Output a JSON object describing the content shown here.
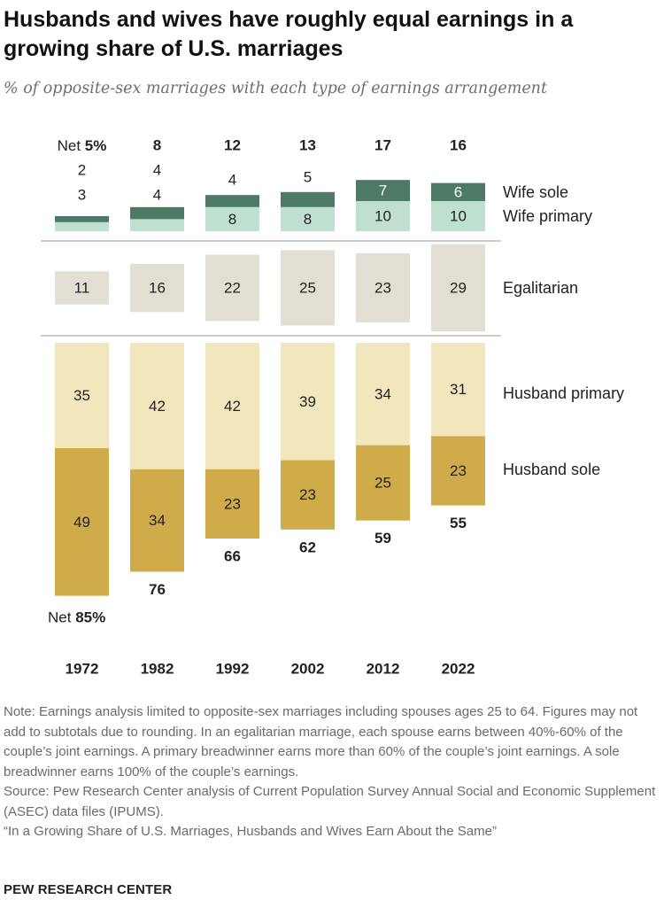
{
  "title": "Husbands and wives have roughly equal earnings in a growing share of U.S. marriages",
  "subtitle": "% of opposite-sex marriages with each type of earnings arrangement",
  "chart_data": {
    "type": "bar",
    "stacked": "diverging",
    "categories": [
      "1972",
      "1982",
      "1992",
      "2002",
      "2012",
      "2022"
    ],
    "series": [
      {
        "name": "Wife sole",
        "group": "wife",
        "color": "#4d7a66",
        "labels": [
          "2",
          "4",
          "4",
          "5",
          "7",
          "6"
        ],
        "values": [
          2,
          4,
          4,
          5,
          7,
          6
        ]
      },
      {
        "name": "Wife primary",
        "group": "wife",
        "color": "#bfe0d0",
        "labels": [
          "3",
          "4",
          "8",
          "8",
          "10",
          "10"
        ],
        "values": [
          3,
          4,
          8,
          8,
          10,
          10
        ]
      },
      {
        "name": "Egalitarian",
        "group": "egalitarian",
        "color": "#e2dfd2",
        "labels": [
          "11",
          "16",
          "22",
          "25",
          "23",
          "29"
        ],
        "values": [
          11,
          16,
          22,
          25,
          23,
          29
        ]
      },
      {
        "name": "Husband primary",
        "group": "husband",
        "color": "#f1e6bc",
        "labels": [
          "35",
          "42",
          "42",
          "39",
          "34",
          "31"
        ],
        "values": [
          35,
          42,
          42,
          39,
          34,
          31
        ]
      },
      {
        "name": "Husband sole",
        "group": "husband",
        "color": "#cfab4a",
        "labels": [
          "49",
          "34",
          "23",
          "23",
          "25",
          "23"
        ],
        "values": [
          49,
          34,
          23,
          23,
          25,
          23
        ]
      }
    ],
    "wife_net": [
      "5%",
      "8",
      "12",
      "13",
      "17",
      "16"
    ],
    "husband_net": [
      "85%",
      "76",
      "66",
      "62",
      "59",
      "55"
    ],
    "net_prefix": "Net"
  },
  "notes": [
    "Note: Earnings analysis limited to opposite-sex marriages including spouses ages 25 to 64. Figures may not add to subtotals due to rounding. In an egalitarian marriage, each spouse earns between 40%-60% of the couple’s joint earnings. A primary breadwinner earns more than 60% of the couple’s joint earnings. A sole breadwinner earns 100% of the couple’s earnings.",
    "Source: Pew Research Center analysis of Current Population Survey Annual Social and Economic Supplement (ASEC) data files (IPUMS).",
    "“In a Growing Share of U.S. Marriages, Husbands and Wives Earn About the Same”"
  ],
  "credit": "PEW RESEARCH CENTER"
}
